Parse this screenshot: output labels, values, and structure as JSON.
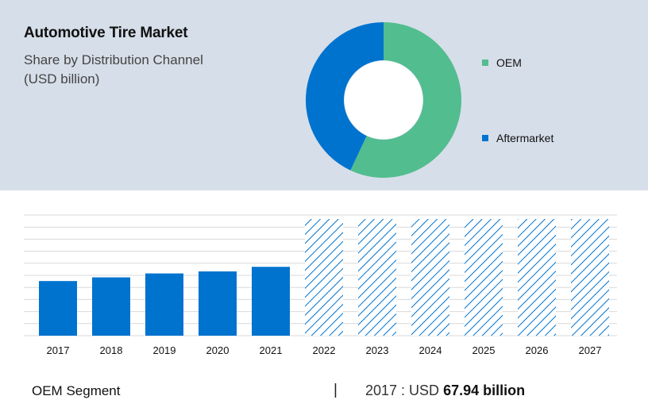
{
  "header": {
    "title": "Automotive Tire Market",
    "subtitle_line1": "Share by Distribution Channel",
    "subtitle_line2": "(USD billion)"
  },
  "colors": {
    "panel_bg": "#d6dee9",
    "oem": "#52bd8f",
    "aftermarket": "#0073cf",
    "bar": "#0073cf",
    "forecast_hatch": "#0073cf",
    "gridline": "#d9d9d9"
  },
  "chart_data": [
    {
      "type": "pie",
      "variant": "donut",
      "title": "Share by Distribution Channel",
      "labels": [
        "OEM",
        "Aftermarket"
      ],
      "values": [
        57,
        43
      ],
      "legend_position": "right"
    },
    {
      "type": "bar",
      "categories": [
        "2017",
        "2018",
        "2019",
        "2020",
        "2021",
        "2022",
        "2023",
        "2024",
        "2025",
        "2026",
        "2027"
      ],
      "values": [
        67.94,
        72.5,
        77.4,
        79.9,
        85.6,
        null,
        null,
        null,
        null,
        null,
        null
      ],
      "forecast_categories": [
        "2022",
        "2023",
        "2024",
        "2025",
        "2026",
        "2027"
      ],
      "ylim": [
        0,
        150
      ],
      "grid": true
    }
  ],
  "footer": {
    "segment_label": "OEM Segment",
    "separator": "|",
    "year_prefix": "2017 : USD",
    "value_text": "67.94 billion"
  }
}
